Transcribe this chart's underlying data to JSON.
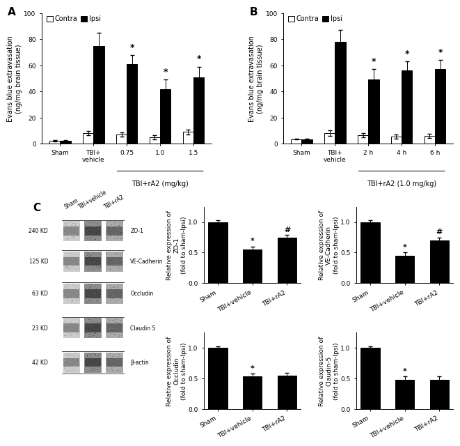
{
  "panel_A": {
    "ylabel": "Evans blue extravasation\n(ng/mg brain tissue)",
    "ylim": [
      0,
      100
    ],
    "yticks": [
      0,
      20,
      40,
      60,
      80,
      100
    ],
    "groups": [
      "Sham",
      "TBI+\nvehicle",
      "0.75",
      "1.0",
      "1.5"
    ],
    "contra_values": [
      2,
      8,
      7,
      5,
      9
    ],
    "ipsi_values": [
      2,
      75,
      61,
      42,
      51
    ],
    "contra_err": [
      0.5,
      1.5,
      1.5,
      1.5,
      2
    ],
    "ipsi_err": [
      0.5,
      10,
      7,
      7,
      8
    ],
    "stars": [
      null,
      null,
      "*",
      "*",
      "*"
    ],
    "xlabel_extra": "TBI+rA2 (mg/kg)",
    "xlabel_extra_span": [
      2,
      4
    ],
    "contra_color": "#ffffff",
    "ipsi_color": "#000000",
    "edge_color": "#000000"
  },
  "panel_B": {
    "ylabel": "Evans blue extravasation\n(ng/mg brain tissue)",
    "ylim": [
      0,
      100
    ],
    "yticks": [
      0,
      20,
      40,
      60,
      80,
      100
    ],
    "groups": [
      "Sham",
      "TBI+\nvehicle",
      "2 h",
      "4 h",
      "6 h"
    ],
    "contra_values": [
      3.5,
      8,
      6.5,
      5.5,
      6
    ],
    "ipsi_values": [
      3.5,
      78,
      49,
      56,
      57
    ],
    "contra_err": [
      0.5,
      2,
      1.5,
      1.5,
      1.5
    ],
    "ipsi_err": [
      0.5,
      9,
      8,
      7,
      7
    ],
    "stars": [
      null,
      null,
      "*",
      "*",
      "*"
    ],
    "xlabel_extra": "TBI+rA2 (1.0 mg/kg)",
    "xlabel_extra_span": [
      2,
      4
    ],
    "contra_color": "#ffffff",
    "ipsi_color": "#000000",
    "edge_color": "#000000"
  },
  "panel_C_western": {
    "bands": [
      "ZO-1",
      "VE-Cadherin",
      "Occludin",
      "Claudin 5",
      "β-actin"
    ],
    "kd_labels": [
      "240 KD",
      "125 KD",
      "63 KD",
      "23 KD",
      "42 KD"
    ],
    "lane_labels": [
      "Sham",
      "TBI+vehicle",
      "TBI+rA2"
    ]
  },
  "panel_C_ZO1": {
    "ylabel": "Relative expression of\nZO-1\n(fold to sham-Ipsi)",
    "ylim": [
      0,
      1.25
    ],
    "yticks": [
      0.0,
      0.5,
      1.0
    ],
    "categories": [
      "Sham",
      "TBI+vehicle",
      "TBI+rA2"
    ],
    "values": [
      1.0,
      0.55,
      0.75
    ],
    "errors": [
      0.03,
      0.05,
      0.04
    ],
    "stars": [
      null,
      "*",
      "#"
    ],
    "bar_color": "#000000"
  },
  "panel_C_VEcad": {
    "ylabel": "Relative expression of\nVE-Cadherin\n(fold to sham-Ipsi)",
    "ylim": [
      0,
      1.25
    ],
    "yticks": [
      0.0,
      0.5,
      1.0
    ],
    "categories": [
      "Sham",
      "TBI+vehicle",
      "TBI+rA2"
    ],
    "values": [
      1.0,
      0.45,
      0.7
    ],
    "errors": [
      0.03,
      0.05,
      0.05
    ],
    "stars": [
      null,
      "*",
      "#"
    ],
    "bar_color": "#000000"
  },
  "panel_C_Occludin": {
    "ylabel": "Relative expression of\nOccludin\n(fold to sham-Ipsi)",
    "ylim": [
      0,
      1.25
    ],
    "yticks": [
      0.0,
      0.5,
      1.0
    ],
    "categories": [
      "Sham",
      "TBI+vehicle",
      "TBI+rA2"
    ],
    "values": [
      1.0,
      0.53,
      0.55
    ],
    "errors": [
      0.03,
      0.05,
      0.04
    ],
    "stars": [
      null,
      "*",
      null
    ],
    "bar_color": "#000000"
  },
  "panel_C_Claudin5": {
    "ylabel": "Relative expression of\nClaudin-5\n(fold to sham-Ipsi)",
    "ylim": [
      0,
      1.25
    ],
    "yticks": [
      0.0,
      0.5,
      1.0
    ],
    "categories": [
      "Sham",
      "TBI+vehicle",
      "TBI+rA2"
    ],
    "values": [
      1.0,
      0.48,
      0.48
    ],
    "errors": [
      0.03,
      0.05,
      0.05
    ],
    "stars": [
      null,
      "*",
      null
    ],
    "bar_color": "#000000"
  },
  "bg_color": "#ffffff",
  "fontsize_label": 7,
  "fontsize_tick": 6.5,
  "fontsize_panel": 11
}
